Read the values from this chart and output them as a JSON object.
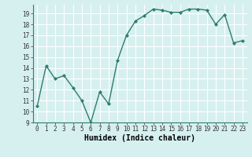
{
  "x": [
    0,
    1,
    2,
    3,
    4,
    5,
    6,
    7,
    8,
    9,
    10,
    11,
    12,
    13,
    14,
    15,
    16,
    17,
    18,
    19,
    20,
    21,
    22,
    23
  ],
  "y": [
    10.5,
    14.2,
    13.0,
    13.3,
    12.2,
    11.0,
    9.0,
    11.8,
    10.7,
    14.7,
    17.0,
    18.3,
    18.8,
    19.4,
    19.3,
    19.1,
    19.1,
    19.4,
    19.4,
    19.3,
    18.0,
    18.9,
    16.3,
    16.5
  ],
  "xlim": [
    -0.5,
    23.5
  ],
  "ylim": [
    9,
    19.8
  ],
  "yticks": [
    9,
    10,
    11,
    12,
    13,
    14,
    15,
    16,
    17,
    18,
    19
  ],
  "xticks": [
    0,
    1,
    2,
    3,
    4,
    5,
    6,
    7,
    8,
    9,
    10,
    11,
    12,
    13,
    14,
    15,
    16,
    17,
    18,
    19,
    20,
    21,
    22,
    23
  ],
  "xlabel": "Humidex (Indice chaleur)",
  "line_color": "#2d7d6e",
  "marker": "D",
  "marker_size": 2.0,
  "bg_color": "#d6f0ef",
  "grid_color": "#b8dcd9",
  "tick_fontsize": 5.5,
  "xlabel_fontsize": 7.0
}
